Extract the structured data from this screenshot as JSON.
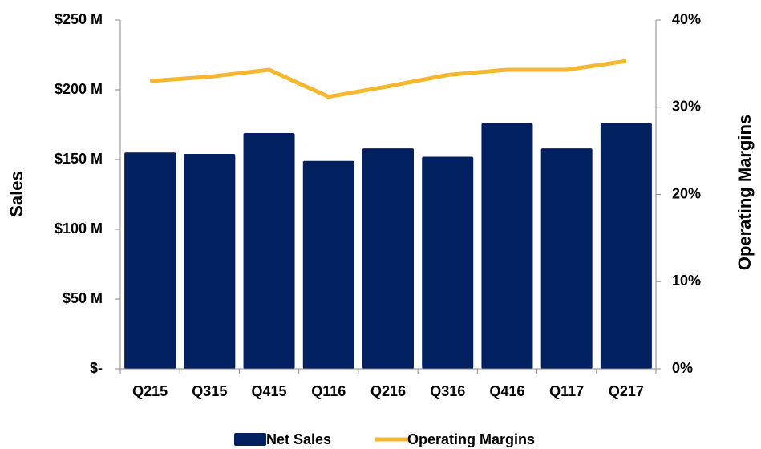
{
  "chart_data": {
    "type": "bar_line",
    "categories": [
      "Q215",
      "Q315",
      "Q415",
      "Q116",
      "Q216",
      "Q316",
      "Q416",
      "Q117",
      "Q217"
    ],
    "series": [
      {
        "name": "Net Sales",
        "type": "bar",
        "color": "#002060",
        "values": [
          155,
          154,
          169,
          149,
          158,
          152,
          176,
          158,
          176
        ]
      },
      {
        "name": "Operating Margins",
        "type": "line",
        "axis": "y2",
        "color": "#f5b730",
        "values": [
          33.0,
          33.5,
          34.3,
          31.2,
          32.4,
          33.7,
          34.3,
          34.3,
          35.3
        ]
      }
    ],
    "ylabel": "Sales",
    "y2label": "Operating Margins",
    "ylim": [
      0,
      250
    ],
    "yticks": [
      {
        "value": 0,
        "label": "$-"
      },
      {
        "value": 50,
        "label": "$50 M"
      },
      {
        "value": 100,
        "label": "$100 M"
      },
      {
        "value": 150,
        "label": "$150 M"
      },
      {
        "value": 200,
        "label": "$200 M"
      },
      {
        "value": 250,
        "label": "$250 M"
      }
    ],
    "y2lim": [
      0,
      40
    ],
    "y2ticks": [
      {
        "value": 0,
        "label": "0%"
      },
      {
        "value": 10,
        "label": "10%"
      },
      {
        "value": 20,
        "label": "20%"
      },
      {
        "value": 30,
        "label": "30%"
      },
      {
        "value": 40,
        "label": "40%"
      }
    ],
    "legend": "bottom"
  }
}
